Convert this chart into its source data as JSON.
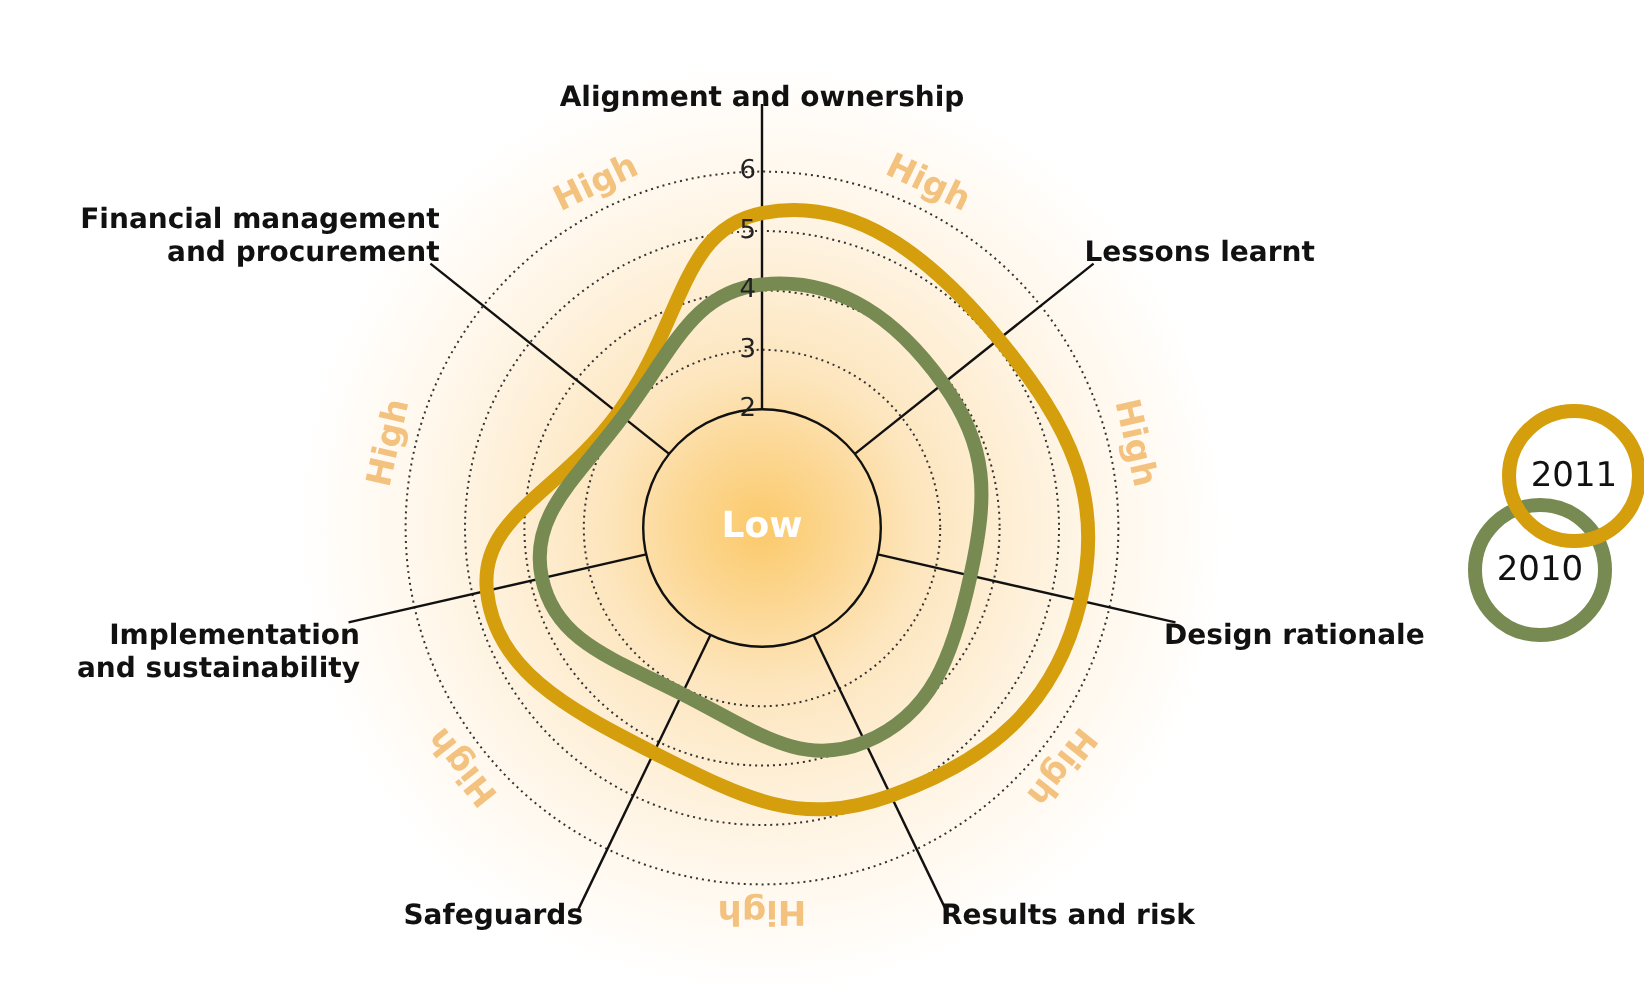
{
  "chart_data": {
    "type": "radar",
    "categories": [
      "Alignment and ownership",
      "Lessons learnt",
      "Design rationale",
      "Results and risk",
      "Safeguards",
      "Implementation and sustainability",
      "Financial management and procurement"
    ],
    "series": [
      {
        "name": "2010",
        "color": "#768a52",
        "values": [
          4.1,
          3.9,
          3.6,
          4.0,
          3.1,
          3.8,
          3.0
        ]
      },
      {
        "name": "2011",
        "color": "#d49e0c",
        "values": [
          5.3,
          5.1,
          5.5,
          5.0,
          4.2,
          4.75,
          3.1
        ]
      }
    ],
    "ylim": [
      0,
      6
    ],
    "yticks": [
      2,
      3,
      4,
      5,
      6
    ],
    "grid": true,
    "legend": "right",
    "marker": "none",
    "line_style": "solid",
    "annotations": [
      "Low",
      "High",
      "High",
      "High",
      "High",
      "High",
      "High",
      "High"
    ]
  }
}
